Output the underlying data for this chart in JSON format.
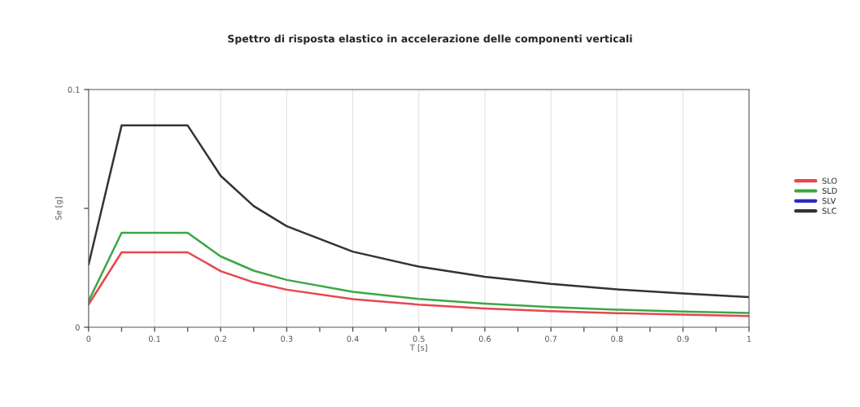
{
  "chart_data": {
    "type": "line",
    "title": "Spettro di risposta elastico in accelerazione delle componenti verticali",
    "xlabel": "T [s]",
    "ylabel": "Se [g]",
    "x": [
      0,
      0.05,
      0.15,
      0.2,
      0.25,
      0.3,
      0.4,
      0.5,
      0.6,
      0.7,
      0.8,
      0.9,
      1.0
    ],
    "series": [
      {
        "name": "SLO",
        "color": "#e8454f",
        "values": [
          0.0096,
          0.0315,
          0.0315,
          0.0236,
          0.0189,
          0.0158,
          0.0118,
          0.0095,
          0.0079,
          0.0068,
          0.0059,
          0.0053,
          0.0047
        ]
      },
      {
        "name": "SLD",
        "color": "#3aa845",
        "values": [
          0.011,
          0.0397,
          0.0397,
          0.0298,
          0.0238,
          0.0199,
          0.0149,
          0.0119,
          0.0099,
          0.0085,
          0.0074,
          0.0066,
          0.006
        ]
      },
      {
        "name": "SLV",
        "color": "#2a2ac0",
        "values": [
          null,
          null,
          null,
          null,
          null,
          null,
          null,
          null,
          null,
          null,
          null,
          null,
          null
        ]
      },
      {
        "name": "SLC",
        "color": "#333333",
        "values": [
          0.0264,
          0.0849,
          0.0849,
          0.0637,
          0.051,
          0.0425,
          0.0318,
          0.0255,
          0.0212,
          0.0182,
          0.0159,
          0.0142,
          0.0127
        ]
      }
    ],
    "xlim": [
      0,
      1
    ],
    "ylim": [
      0,
      0.1
    ],
    "xticks": [
      0,
      {
        "value": 0.05,
        "label": null
      },
      0.1,
      {
        "value": 0.15,
        "label": null
      },
      0.2,
      {
        "value": 0.25,
        "label": null
      },
      0.3,
      {
        "value": 0.35,
        "label": null
      },
      0.4,
      {
        "value": 0.45,
        "label": null
      },
      0.5,
      {
        "value": 0.55,
        "label": null
      },
      0.6,
      {
        "value": 0.65,
        "label": null
      },
      0.7,
      {
        "value": 0.75,
        "label": null
      },
      0.8,
      {
        "value": 0.85,
        "label": null
      },
      0.9,
      {
        "value": 0.95,
        "label": null
      },
      1
    ],
    "yticks": [
      0,
      {
        "value": 0.05,
        "label": null
      },
      0.1
    ],
    "grid": "x",
    "legend": "right",
    "marker": "none",
    "line_style": "solid"
  }
}
